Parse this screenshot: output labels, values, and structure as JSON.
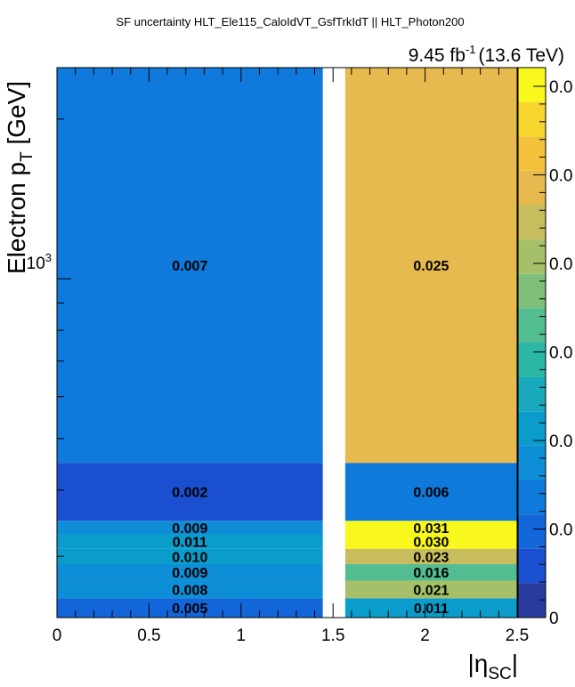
{
  "chart_data": {
    "type": "heatmap",
    "title": "SF uncertainty HLT_Ele115_CaloIdVT_GsfTrkIdT || HLT_Photon200",
    "lumi_label": "9.45 fb",
    "lumi_sup": "-1",
    "lumi_energy": "(13.6 TeV)",
    "xlabel": "|η",
    "xlabel_sub": "SC",
    "xlabel_close": "|",
    "ylabel": "Electron p",
    "ylabel_sub": "T",
    "ylabel_unit": " [GeV]",
    "xlim": [
      0,
      2.5
    ],
    "ylim": [
      230,
      2500
    ],
    "y_scale": "log",
    "x_tick_labels": [
      "0",
      "0.5",
      "1",
      "1.5",
      "2",
      "2.5"
    ],
    "x_tick_values": [
      0,
      0.5,
      1,
      1.5,
      2,
      2.5
    ],
    "y_tick_label_base": "10",
    "y_tick_label_exp": "3",
    "y_tick_value": 1000,
    "x_bins": [
      [
        0,
        1.4442
      ],
      [
        1.566,
        2.5
      ]
    ],
    "y_edges": [
      230,
      250,
      270,
      290,
      310,
      330,
      350,
      450,
      2500
    ],
    "values": [
      [
        0.005,
        0.011
      ],
      [
        0.008,
        0.021
      ],
      [
        0.009,
        0.016
      ],
      [
        0.01,
        0.023
      ],
      [
        0.011,
        0.03
      ],
      [
        0.009,
        0.031
      ],
      [
        0.002,
        0.006
      ],
      [
        0.007,
        0.025
      ]
    ],
    "cell_labels": [
      [
        "0.005",
        "0.011"
      ],
      [
        "0.008",
        "0.021"
      ],
      [
        "0.009",
        "0.016"
      ],
      [
        "0.010",
        "0.023"
      ],
      [
        "0.011",
        "0.030"
      ],
      [
        "0.009",
        "0.031"
      ],
      [
        "0.002",
        "0.006"
      ],
      [
        "0.007",
        "0.025"
      ]
    ],
    "z_range": [
      0,
      0.031
    ],
    "colorbar_tick_labels": [
      "0",
      "0.0",
      "0.0",
      "0.0",
      "0.0",
      "0.0",
      "0.0"
    ],
    "colors": [
      "#2a3c9e",
      "#1a4fcf",
      "#1366d9",
      "#107adc",
      "#0f8ed8",
      "#0a9dcc",
      "#18aabc",
      "#2cb6a6",
      "#52bd90",
      "#7ec07a",
      "#a6c069",
      "#c8bd5e",
      "#e6ba4e",
      "#f4c13b",
      "#f6d52c",
      "#f9f81c"
    ],
    "grid": false,
    "legend": "colorbar-right"
  }
}
